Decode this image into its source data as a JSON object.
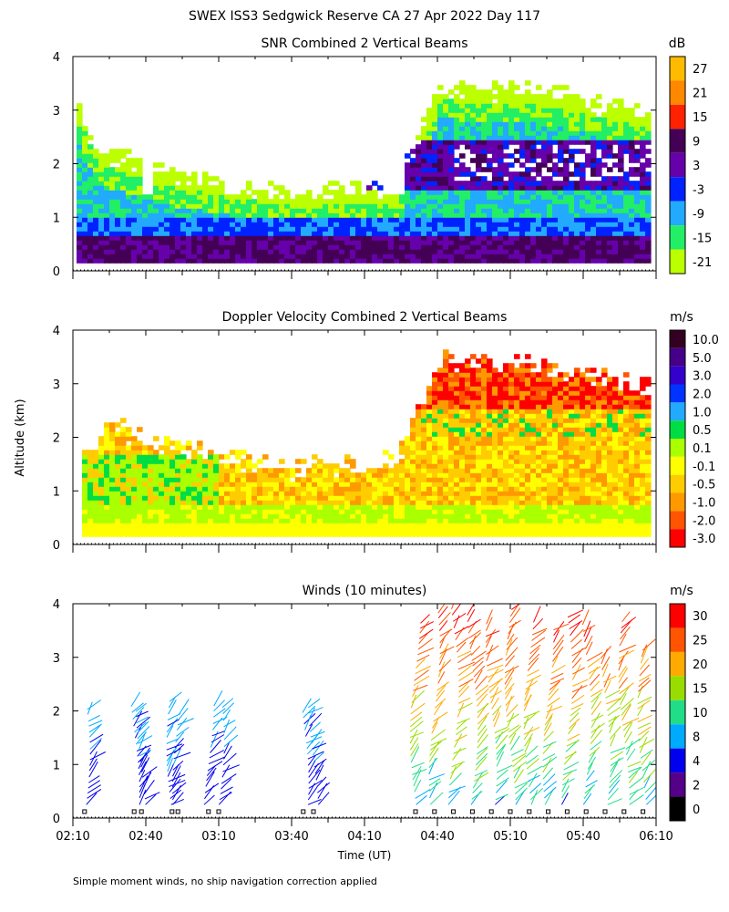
{
  "figure": {
    "title": "SWEX ISS3 Sedgwick Reserve CA  27 Apr 2022 Day 117",
    "ylabel": "Altitude (km)",
    "xlabel": "Time (UT)",
    "footnote": "Simple moment winds, no ship navigation correction applied"
  },
  "chart_data": [
    {
      "type": "heatmap",
      "title": "SNR Combined 2 Vertical Beams",
      "colorbar_unit": "dB",
      "colorbar_labels": [
        "27",
        "21",
        "15",
        "9",
        "3",
        "-3",
        "-9",
        "-15",
        "-21"
      ],
      "colorbar_colors": [
        "#ffbb00",
        "#ff8800",
        "#ff2200",
        "#440055",
        "#6600aa",
        "#0022ff",
        "#22aaff",
        "#22ee66",
        "#bbff00"
      ],
      "x_ticks": [
        "02:10",
        "02:40",
        "03:10",
        "03:40",
        "04:10",
        "04:40",
        "05:10",
        "05:40",
        "06:10"
      ],
      "y_ticks": [
        "0",
        "1",
        "2",
        "3",
        "4"
      ],
      "xlim": [
        "02:10",
        "06:10"
      ],
      "ylim": [
        0,
        4
      ]
    },
    {
      "type": "heatmap",
      "title": "Doppler Velocity Combined 2 Vertical Beams",
      "colorbar_unit": "m/s",
      "colorbar_labels": [
        "10.0",
        "5.0",
        "3.0",
        "2.0",
        "1.0",
        "0.5",
        "0.1",
        "-0.1",
        "-0.5",
        "-1.0",
        "-2.0",
        "-3.0"
      ],
      "colorbar_colors": [
        "#330022",
        "#440088",
        "#3300cc",
        "#0033ff",
        "#22aaff",
        "#00dd44",
        "#aaff00",
        "#ffff00",
        "#ffcc00",
        "#ff9900",
        "#ff5500",
        "#ff0000"
      ],
      "x_ticks": [
        "02:10",
        "02:40",
        "03:10",
        "03:40",
        "04:10",
        "04:40",
        "05:10",
        "05:40",
        "06:10"
      ],
      "y_ticks": [
        "0",
        "1",
        "2",
        "3",
        "4"
      ],
      "xlim": [
        "02:10",
        "06:10"
      ],
      "ylim": [
        0,
        4
      ]
    },
    {
      "type": "scatter",
      "title": "Winds (10 minutes)",
      "colorbar_unit": "m/s",
      "colorbar_labels": [
        "30",
        "25",
        "20",
        "15",
        "10",
        "8",
        "4",
        "2",
        "0"
      ],
      "colorbar_colors": [
        "#ff0000",
        "#ff5500",
        "#ffaa00",
        "#99dd00",
        "#22dd88",
        "#00aaff",
        "#0000ee",
        "#550088",
        "#000000"
      ],
      "x_ticks": [
        "02:10",
        "02:40",
        "03:10",
        "03:40",
        "04:10",
        "04:40",
        "05:10",
        "05:40",
        "06:10"
      ],
      "y_ticks": [
        "0",
        "1",
        "2",
        "3",
        "4"
      ],
      "xlim": [
        "02:10",
        "06:10"
      ],
      "ylim": [
        0,
        4
      ]
    }
  ]
}
